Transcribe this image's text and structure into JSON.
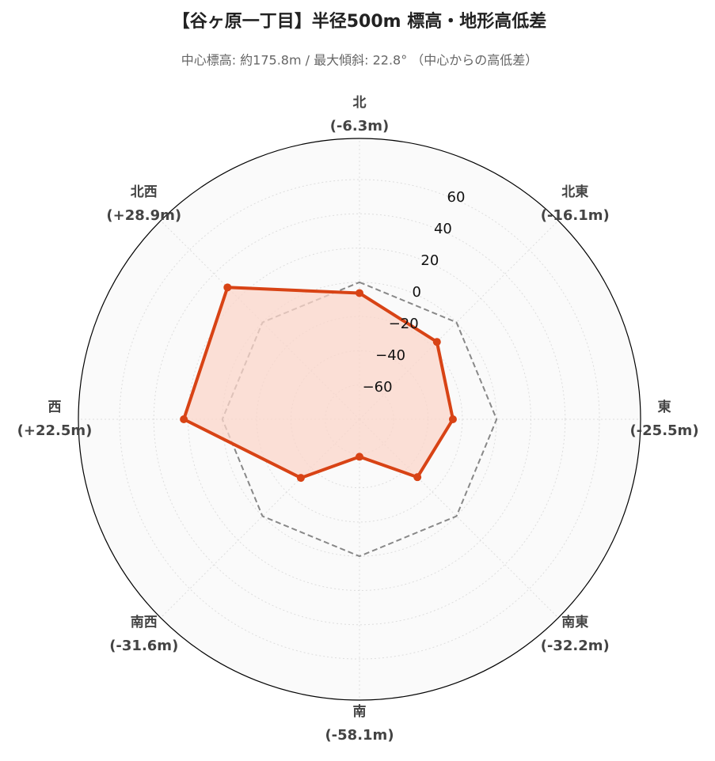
{
  "chart_data": {
    "type": "radar",
    "title": "【谷ヶ原一丁目】半径500m 標高・地形高低差",
    "subtitle": "中心標高: 約175.8m / 最大傾斜: 22.8° （中心からの高低差）",
    "categories": [
      "北",
      "北東",
      "東",
      "南東",
      "南",
      "南西",
      "西",
      "北西"
    ],
    "values": [
      -6.3,
      -16.1,
      -25.5,
      -32.2,
      -58.1,
      -31.6,
      22.5,
      28.9
    ],
    "value_labels": [
      "(-6.3m)",
      "(-16.1m)",
      "(-25.5m)",
      "(-32.2m)",
      "(-58.1m)",
      "(-31.6m)",
      "(+22.5m)",
      "(+28.9m)"
    ],
    "color": "#d84315",
    "fill_color": "#fbd5ca",
    "reference_line": 0,
    "ylim": [
      -80,
      84
    ],
    "yticks": [
      {
        "value": -60,
        "label": "−60"
      },
      {
        "value": -40,
        "label": "−40"
      },
      {
        "value": -20,
        "label": "−20"
      },
      0,
      20,
      40,
      60
    ],
    "grid": true
  }
}
